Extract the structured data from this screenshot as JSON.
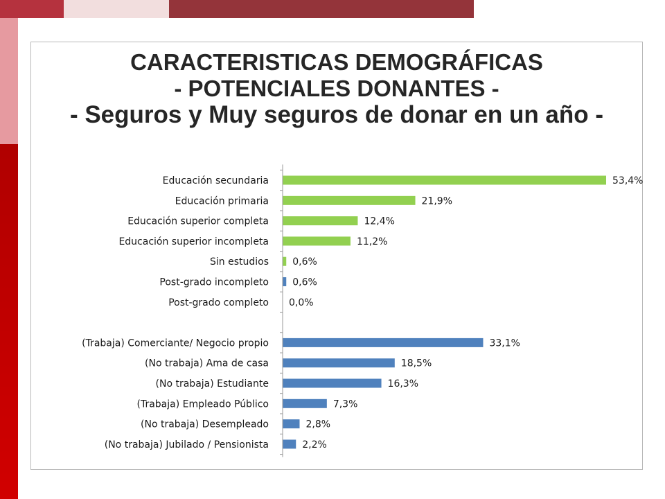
{
  "slide": {
    "accent_colors": [
      "#b5323e",
      "#f2dede",
      "#94343a",
      "#e69aa0",
      "#c00000"
    ]
  },
  "chart_data": {
    "type": "bar",
    "orientation": "horizontal",
    "title": [
      "CARACTERISTICAS DEMOGRÁFICAS",
      "- POTENCIALES DONANTES -",
      "- Seguros y Muy seguros de donar en un año -"
    ],
    "xlim": [
      0,
      55
    ],
    "grid": false,
    "legend": "none",
    "groups": [
      {
        "color": "#92d050",
        "categories": [
          "Educación secundaria",
          "Educación primaria",
          "Educación superior  completa",
          "Educación superior  incompleta",
          "Sin estudios"
        ],
        "values": [
          53.4,
          21.9,
          12.4,
          11.2,
          0.6
        ],
        "labels": [
          "53,4%",
          "21,9%",
          "12,4%",
          "11,2%",
          "0,6%"
        ]
      },
      {
        "color": "#4f81bd",
        "categories": [
          "Post-grado incompleto",
          "Post-grado completo"
        ],
        "values": [
          0.6,
          0.0
        ],
        "labels": [
          "0,6%",
          "0,0%"
        ]
      },
      {
        "color": "#4f81bd",
        "categories": [
          "(Trabaja) Comerciante/ Negocio propio",
          "(No trabaja) Ama de casa",
          "(No trabaja) Estudiante",
          "(Trabaja) Empleado Público",
          "(No trabaja) Desempleado",
          "(No trabaja) Jubilado / Pensionista"
        ],
        "values": [
          33.1,
          18.5,
          16.3,
          7.3,
          2.8,
          2.2
        ],
        "labels": [
          "33,1%",
          "18,5%",
          "16,3%",
          "7,3%",
          "2,8%",
          "2,2%"
        ]
      }
    ]
  }
}
